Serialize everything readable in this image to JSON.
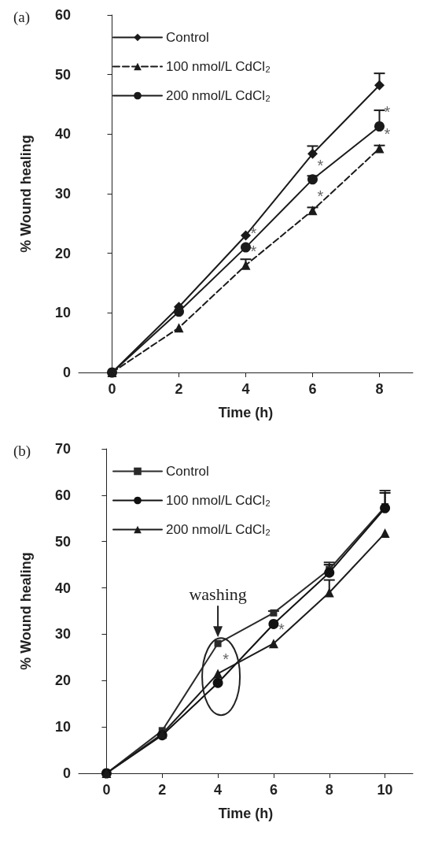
{
  "chart_data": [
    {
      "type": "line",
      "title": "(a)",
      "xlabel": "Time (h)",
      "ylabel": "% Wound healing",
      "x": [
        0,
        2,
        4,
        6,
        8
      ],
      "xlim": [
        -1,
        9
      ],
      "xticks": [
        0,
        2,
        4,
        6,
        8
      ],
      "ylim": [
        0,
        60
      ],
      "yticks": [
        0,
        10,
        20,
        30,
        40,
        50,
        60
      ],
      "legend": "top left",
      "series": [
        {
          "name": "Control",
          "color": "#1a1a1a",
          "marker": "diamond",
          "line_style": "solid",
          "values": [
            0,
            11,
            23,
            36.7,
            48.2
          ],
          "errors": [
            null,
            null,
            null,
            [
              36.7,
              38
            ],
            [
              48.2,
              50.2
            ]
          ]
        },
        {
          "name": "100 nmol/L CdCl$_{2}$",
          "color": "#1a1a1a",
          "marker": "triangle",
          "line_style": "dashed",
          "values": [
            0,
            7.5,
            18,
            27.2,
            37.6
          ],
          "errors": [
            null,
            null,
            [
              18,
              19
            ],
            [
              27.2,
              27.7
            ],
            [
              37.6,
              38.1
            ]
          ]
        },
        {
          "name": "200 nmol/L CdCl$_{2}$",
          "color": "#1a1a1a",
          "marker": "circle",
          "line_style": "solid",
          "values": [
            0,
            10.2,
            21,
            32.4,
            41.3
          ],
          "errors": [
            null,
            null,
            null,
            [
              32.4,
              33
            ],
            [
              41.3,
              44
            ]
          ]
        }
      ],
      "annotations": [
        {
          "text": "*",
          "x": 4,
          "y": 21
        },
        {
          "text": "*",
          "x": 4,
          "y": 18
        },
        {
          "text": "*",
          "x": 6,
          "y": 32.4
        },
        {
          "text": "*",
          "x": 6,
          "y": 27.2
        },
        {
          "text": "*",
          "x": 8,
          "y": 41.3
        },
        {
          "text": "*",
          "x": 8,
          "y": 37.6
        }
      ]
    },
    {
      "type": "line",
      "title": "(b)",
      "xlabel": "Time (h)",
      "ylabel": "% Wound healing",
      "x": [
        0,
        2,
        4,
        6,
        8,
        10
      ],
      "xlim": [
        -1,
        11
      ],
      "xticks": [
        0,
        2,
        4,
        6,
        8,
        10
      ],
      "ylim": [
        0,
        70
      ],
      "yticks": [
        0,
        10,
        20,
        30,
        40,
        50,
        60,
        70
      ],
      "legend": "top left",
      "series": [
        {
          "name": "Control",
          "color": "#2a2a2a",
          "marker": "square",
          "line_style": "solid",
          "values": [
            0,
            9.2,
            28,
            34.6,
            44,
            57.5
          ],
          "errors": [
            null,
            null,
            null,
            [
              34.6,
              35
            ],
            [
              44,
              45.5
            ],
            [
              57.5,
              61
            ]
          ]
        },
        {
          "name": "100 nmol/L CdCl$_{2}$",
          "color": "#111111",
          "marker": "circle",
          "line_style": "solid",
          "values": [
            0,
            8.2,
            19.5,
            32.2,
            43.3,
            57.2
          ],
          "errors": [
            null,
            null,
            null,
            null,
            [
              43.3,
              45
            ],
            [
              57.2,
              60.5
            ]
          ]
        },
        {
          "name": "200 nmol/L CdCl$_{2}$",
          "color": "#1a1a1a",
          "marker": "triangle",
          "line_style": "solid",
          "values": [
            0,
            8.5,
            21.5,
            28,
            39,
            51.8
          ],
          "errors": [
            null,
            null,
            null,
            null,
            [
              39,
              41.7
            ],
            null
          ]
        }
      ],
      "annotations": [
        {
          "text": "washing",
          "x": 4,
          "y": 28
        },
        {
          "text": "*",
          "x": 4,
          "y": 21.5
        },
        {
          "text": "*",
          "x": 6,
          "y": 28
        }
      ]
    }
  ]
}
